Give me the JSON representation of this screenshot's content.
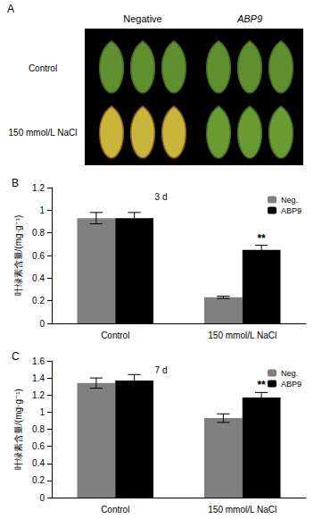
{
  "photo_panel": {
    "panel": "A",
    "columns": [
      "Negative",
      "ABP9"
    ],
    "rows": [
      "Control",
      "150 mmol/L NaCl"
    ]
  },
  "chart_data": [
    {
      "panel": "B",
      "type": "bar",
      "annotation": "3 d",
      "y_label": "叶绿素含量/(mg·g⁻¹)",
      "categories": [
        "Control",
        "150 mmol/L NaCl"
      ],
      "series": [
        {
          "name": "Neg.",
          "color": "#808080",
          "values": [
            0.93,
            0.23
          ],
          "errors": [
            0.05,
            0.01
          ],
          "significance": [
            null,
            null
          ]
        },
        {
          "name": "ABP9",
          "color": "#000000",
          "values": [
            0.93,
            0.65
          ],
          "errors": [
            0.05,
            0.04
          ],
          "significance": [
            null,
            "**"
          ]
        }
      ],
      "ylim": [
        0,
        1.2
      ],
      "yticks": [
        0,
        0.2,
        0.4,
        0.6,
        0.8,
        1,
        1.2
      ],
      "grid": false,
      "legend": "upper right"
    },
    {
      "panel": "C",
      "type": "bar",
      "annotation": "7 d",
      "y_label": "叶绿素含量/(mg·g⁻¹)",
      "categories": [
        "Control",
        "150 mmol/L NaCl"
      ],
      "series": [
        {
          "name": "Neg.",
          "color": "#808080",
          "values": [
            1.34,
            0.93
          ],
          "errors": [
            0.06,
            0.05
          ],
          "significance": [
            null,
            null
          ]
        },
        {
          "name": "ABP9",
          "color": "#000000",
          "values": [
            1.37,
            1.17
          ],
          "errors": [
            0.07,
            0.06
          ],
          "significance": [
            null,
            "**"
          ]
        }
      ],
      "ylim": [
        0,
        1.6
      ],
      "yticks": [
        0,
        0.2,
        0.4,
        0.6,
        0.8,
        1,
        1.2,
        1.4,
        1.6
      ],
      "grid": false,
      "legend": "upper right"
    }
  ]
}
